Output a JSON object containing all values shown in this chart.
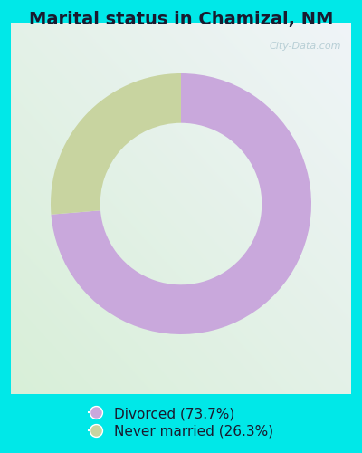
{
  "title": "Marital status in Chamizal, NM",
  "slices": [
    73.7,
    26.3
  ],
  "colors": [
    "#c9a8dc",
    "#c8d4a0"
  ],
  "labels": [
    "Divorced (73.7%)",
    "Never married (26.3%)"
  ],
  "legend_colors": [
    "#c9a8dc",
    "#c8d4a0"
  ],
  "background_color": "#00e8e8",
  "donut_width": 0.38,
  "start_angle": 90,
  "title_fontsize": 14,
  "legend_fontsize": 11,
  "watermark": "City-Data.com"
}
